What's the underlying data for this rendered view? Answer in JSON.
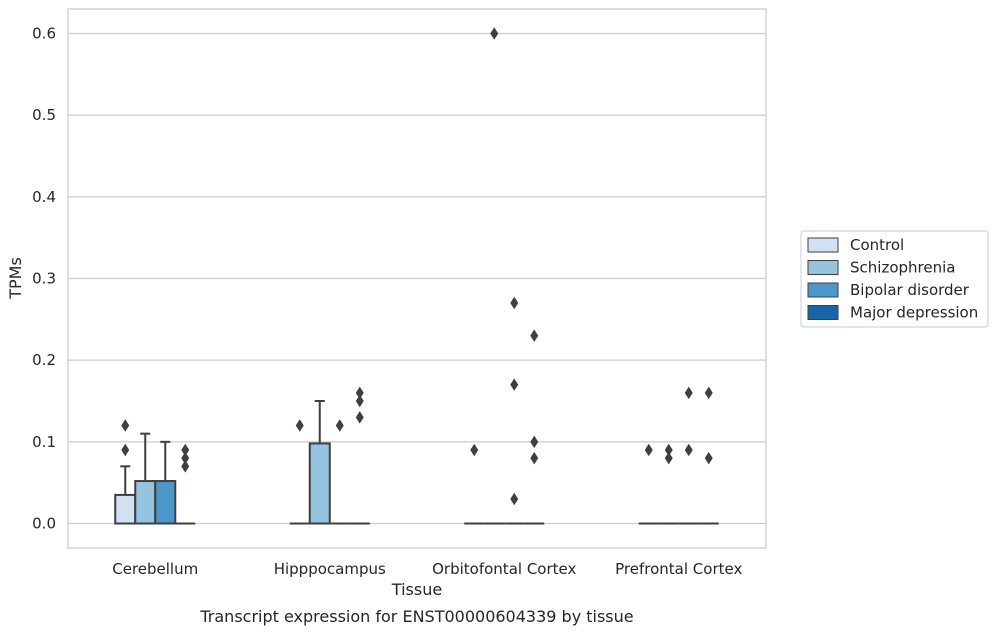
{
  "chart_data": {
    "type": "box",
    "xlabel": "Tissue",
    "ylabel": "TPMs",
    "caption": "Transcript expression for ENST00000604339 by tissue",
    "ylim": [
      -0.03,
      0.63
    ],
    "yticks": [
      0.0,
      0.1,
      0.2,
      0.3,
      0.4,
      0.5,
      0.6
    ],
    "ytick_labels": [
      "0.0",
      "0.1",
      "0.2",
      "0.3",
      "0.4",
      "0.5",
      "0.6"
    ],
    "grid": "horizontal",
    "legend_position": "right",
    "categories": [
      "Cerebellum",
      "Hipppocampus",
      "Orbitofontal Cortex",
      "Prefrontal Cortex"
    ],
    "series": [
      {
        "name": "Control",
        "color": "#d0e1f2",
        "boxes": [
          {
            "q1": 0.0,
            "median": 0.0,
            "q3": 0.035,
            "whisker_low": 0.0,
            "whisker_high": 0.07,
            "outliers": [
              0.09,
              0.12
            ]
          },
          {
            "q1": 0.0,
            "median": 0.0,
            "q3": 0.0,
            "whisker_low": 0.0,
            "whisker_high": 0.0,
            "outliers": [
              0.12
            ]
          },
          {
            "q1": 0.0,
            "median": 0.0,
            "q3": 0.0,
            "whisker_low": 0.0,
            "whisker_high": 0.0,
            "outliers": [
              0.09
            ]
          },
          {
            "q1": 0.0,
            "median": 0.0,
            "q3": 0.0,
            "whisker_low": 0.0,
            "whisker_high": 0.0,
            "outliers": [
              0.09
            ]
          }
        ]
      },
      {
        "name": "Schizophrenia",
        "color": "#94c4df",
        "boxes": [
          {
            "q1": 0.0,
            "median": 0.0,
            "q3": 0.052,
            "whisker_low": 0.0,
            "whisker_high": 0.11,
            "outliers": []
          },
          {
            "q1": 0.0,
            "median": 0.0,
            "q3": 0.098,
            "whisker_low": 0.0,
            "whisker_high": 0.15,
            "outliers": []
          },
          {
            "q1": 0.0,
            "median": 0.0,
            "q3": 0.0,
            "whisker_low": 0.0,
            "whisker_high": 0.0,
            "outliers": [
              0.6
            ]
          },
          {
            "q1": 0.0,
            "median": 0.0,
            "q3": 0.0,
            "whisker_low": 0.0,
            "whisker_high": 0.0,
            "outliers": [
              0.08,
              0.09
            ]
          }
        ]
      },
      {
        "name": "Bipolar disorder",
        "color": "#4a98c9",
        "boxes": [
          {
            "q1": 0.0,
            "median": 0.0,
            "q3": 0.052,
            "whisker_low": 0.0,
            "whisker_high": 0.1,
            "outliers": []
          },
          {
            "q1": 0.0,
            "median": 0.0,
            "q3": 0.0,
            "whisker_low": 0.0,
            "whisker_high": 0.0,
            "outliers": [
              0.12
            ]
          },
          {
            "q1": 0.0,
            "median": 0.0,
            "q3": 0.0,
            "whisker_low": 0.0,
            "whisker_high": 0.0,
            "outliers": [
              0.03,
              0.17,
              0.27
            ]
          },
          {
            "q1": 0.0,
            "median": 0.0,
            "q3": 0.0,
            "whisker_low": 0.0,
            "whisker_high": 0.0,
            "outliers": [
              0.09,
              0.16
            ]
          }
        ]
      },
      {
        "name": "Major depression",
        "color": "#1764ab",
        "boxes": [
          {
            "q1": 0.0,
            "median": 0.0,
            "q3": 0.0,
            "whisker_low": 0.0,
            "whisker_high": 0.0,
            "outliers": [
              0.07,
              0.08,
              0.09
            ]
          },
          {
            "q1": 0.0,
            "median": 0.0,
            "q3": 0.0,
            "whisker_low": 0.0,
            "whisker_high": 0.0,
            "outliers": [
              0.13,
              0.15,
              0.16
            ]
          },
          {
            "q1": 0.0,
            "median": 0.0,
            "q3": 0.0,
            "whisker_low": 0.0,
            "whisker_high": 0.0,
            "outliers": [
              0.08,
              0.1,
              0.23
            ]
          },
          {
            "q1": 0.0,
            "median": 0.0,
            "q3": 0.0,
            "whisker_low": 0.0,
            "whisker_high": 0.0,
            "outliers": [
              0.08,
              0.16
            ]
          }
        ]
      }
    ]
  }
}
